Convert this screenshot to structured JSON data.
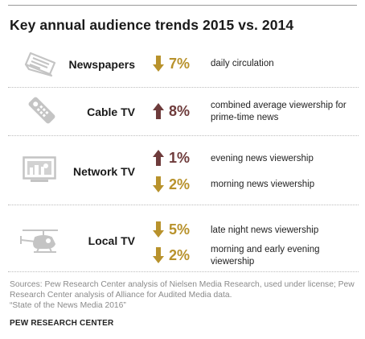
{
  "title": "Key annual audience trends 2015 vs. 2014",
  "colors": {
    "down": "#b8922c",
    "up": "#6e3b3b",
    "icon": "#c4c4c4"
  },
  "rows": [
    {
      "media": "Newspapers",
      "icon": "newspaper-icon",
      "changes": [
        {
          "direction": "down",
          "value": "7%",
          "label": "daily circulation"
        }
      ]
    },
    {
      "media": "Cable TV",
      "icon": "remote-control-icon",
      "changes": [
        {
          "direction": "up",
          "value": "8%",
          "label": "combined average viewership for prime-time news"
        }
      ]
    },
    {
      "media": "Network TV",
      "icon": "tv-icon",
      "changes": [
        {
          "direction": "up",
          "value": "1%",
          "label": "evening news viewership"
        },
        {
          "direction": "down",
          "value": "2%",
          "label": "morning news viewership"
        }
      ]
    },
    {
      "media": "Local TV",
      "icon": "helicopter-icon",
      "changes": [
        {
          "direction": "down",
          "value": "5%",
          "label": "late night news viewership"
        },
        {
          "direction": "down",
          "value": "2%",
          "label": "morning and early evening viewership"
        }
      ]
    }
  ],
  "source": "Sources: Pew Research Center analysis of Nielsen Media Research, used under license; Pew Research Center analysis of Alliance for Audited Media data.",
  "report": "“State of the News Media 2016”",
  "brand": "PEW RESEARCH CENTER"
}
